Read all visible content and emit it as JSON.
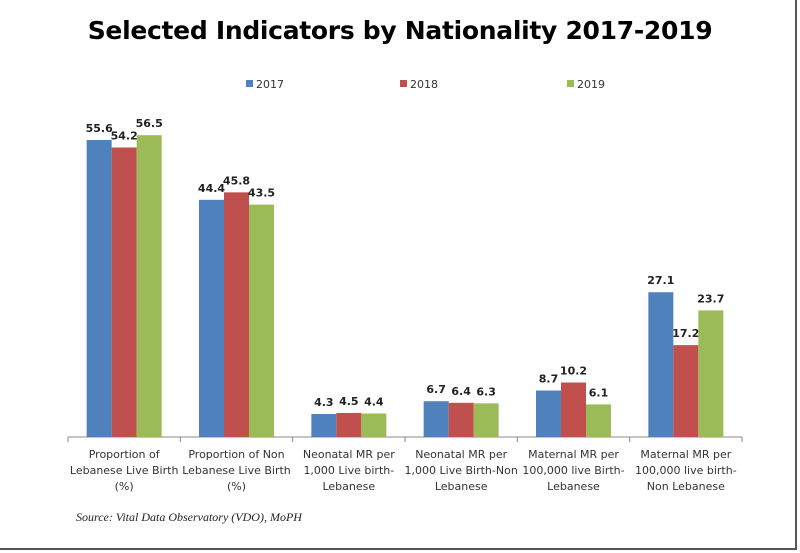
{
  "chart_data": {
    "type": "bar",
    "title": "Selected Indicators by Nationality 2017-2019",
    "xlabel": "",
    "ylabel": "",
    "ylim": [
      0,
      60
    ],
    "grid": false,
    "legend_position": "top",
    "categories": [
      [
        "Proportion of",
        "Lebanese Live Birth",
        "(%)"
      ],
      [
        "Proportion of Non",
        "Lebanese Live Birth",
        "(%)"
      ],
      [
        "Neonatal MR per",
        "1,000 Live birth-",
        "Lebanese"
      ],
      [
        "Neonatal MR per",
        "1,000 Live Birth-Non",
        "Lebanese"
      ],
      [
        "Maternal MR per",
        "100,000 live Birth-",
        "Lebanese"
      ],
      [
        "Maternal MR per",
        "100,000 live birth-",
        "Non Lebanese"
      ]
    ],
    "series": [
      {
        "name": "2017",
        "color": "#4f81bd",
        "values": [
          55.6,
          44.4,
          4.3,
          6.7,
          8.7,
          27.1
        ]
      },
      {
        "name": "2018",
        "color": "#c0504d",
        "values": [
          54.2,
          45.8,
          4.5,
          6.4,
          10.2,
          17.2
        ]
      },
      {
        "name": "2019",
        "color": "#9bbb59",
        "values": [
          56.5,
          43.5,
          4.4,
          6.3,
          6.1,
          23.7
        ]
      }
    ],
    "annotations": [
      "Source: Vital Data Observatory (VDO), MoPH"
    ]
  },
  "source": "Source: Vital Data Observatory (VDO), MoPH"
}
